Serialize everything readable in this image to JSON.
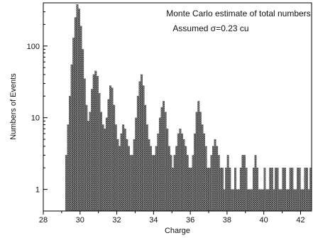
{
  "chart_data": {
    "type": "bar",
    "title": "",
    "xlabel": "Charge",
    "ylabel": "Numbers of Events",
    "xlim": [
      28,
      42.6
    ],
    "ylim": [
      0.5,
      400
    ],
    "y_scale": "log",
    "grid": false,
    "legend": "none",
    "bin_width": 0.1,
    "x_ticks": [
      28,
      30,
      32,
      34,
      36,
      38,
      40,
      42
    ],
    "y_ticks": [
      {
        "value": 1,
        "label": "1"
      },
      {
        "value": 10,
        "label": "10"
      },
      {
        "value": 100,
        "label": "100"
      }
    ],
    "annotations": [
      "Monte Carlo estimate of total numbers of events",
      "Assumed σ=0.23 cu"
    ],
    "colors": {
      "bar_fill": "#8c8c8c",
      "bar_edge": "#3a3a3a",
      "axis": "#000000"
    },
    "series": [
      {
        "x": [
          29.2,
          29.3,
          29.4,
          29.5,
          29.6,
          29.7,
          29.8,
          29.9,
          30.0,
          30.1,
          30.2,
          30.3,
          30.4,
          30.5,
          30.6,
          30.7,
          30.8,
          30.9,
          31.0,
          31.1,
          31.2,
          31.3,
          31.4,
          31.5,
          31.6,
          31.7,
          31.8,
          31.9,
          32.0,
          32.1,
          32.2,
          32.3,
          32.4,
          32.5,
          32.6,
          32.7,
          32.8,
          32.9,
          33.0,
          33.1,
          33.2,
          33.3,
          33.4,
          33.5,
          33.6,
          33.7,
          33.8,
          33.9,
          34.0,
          34.1,
          34.2,
          34.3,
          34.4,
          34.5,
          34.6,
          34.7,
          34.8,
          34.9,
          35.0,
          35.1,
          35.2,
          35.3,
          35.4,
          35.5,
          35.6,
          35.7,
          35.8,
          35.9,
          36.0,
          36.1,
          36.2,
          36.3,
          36.4,
          36.5,
          36.6,
          36.7,
          36.8,
          36.9,
          37.0,
          37.1,
          37.2,
          37.3,
          37.4,
          37.5,
          37.6,
          37.7,
          37.8,
          37.9,
          38.0,
          38.1,
          38.2,
          38.3,
          38.4,
          38.5,
          38.6,
          38.7,
          38.8,
          38.9,
          39.0,
          39.1,
          39.2,
          39.3,
          39.4,
          39.5,
          39.6,
          39.7,
          39.8,
          39.9,
          40.0,
          40.1,
          40.2,
          40.3,
          40.4,
          40.5,
          40.6,
          40.7,
          40.8,
          40.9,
          41.0,
          41.1,
          41.2,
          41.3,
          41.4,
          41.5,
          41.6,
          41.7,
          41.8,
          41.9,
          42.0,
          42.1,
          42.2,
          42.3,
          42.4,
          42.5
        ],
        "values": [
          3,
          8,
          20,
          55,
          130,
          250,
          380,
          330,
          190,
          90,
          35,
          15,
          9,
          12,
          25,
          40,
          45,
          38,
          22,
          12,
          8,
          7,
          10,
          18,
          28,
          26,
          15,
          8,
          5,
          4,
          6,
          8,
          7,
          5,
          4,
          3,
          3,
          5,
          10,
          20,
          32,
          40,
          28,
          15,
          8,
          5,
          4,
          3,
          3,
          4,
          6,
          10,
          14,
          17,
          12,
          7,
          4,
          3,
          2,
          3,
          4,
          6,
          7,
          6,
          5,
          4,
          3,
          2,
          2,
          3,
          6,
          12,
          17,
          12,
          8,
          6,
          4,
          2,
          2,
          3,
          4,
          5,
          4,
          3,
          2,
          2,
          1,
          2,
          3,
          2,
          1,
          1,
          2,
          1,
          1,
          2,
          3,
          3,
          2,
          1,
          1,
          1,
          2,
          3,
          2,
          1,
          1,
          1,
          2,
          1,
          1,
          2,
          2,
          1,
          2,
          2,
          1,
          1,
          2,
          2,
          1,
          1,
          2,
          2,
          1,
          1,
          2,
          2,
          1,
          1,
          2,
          2,
          1,
          2
        ]
      }
    ]
  }
}
